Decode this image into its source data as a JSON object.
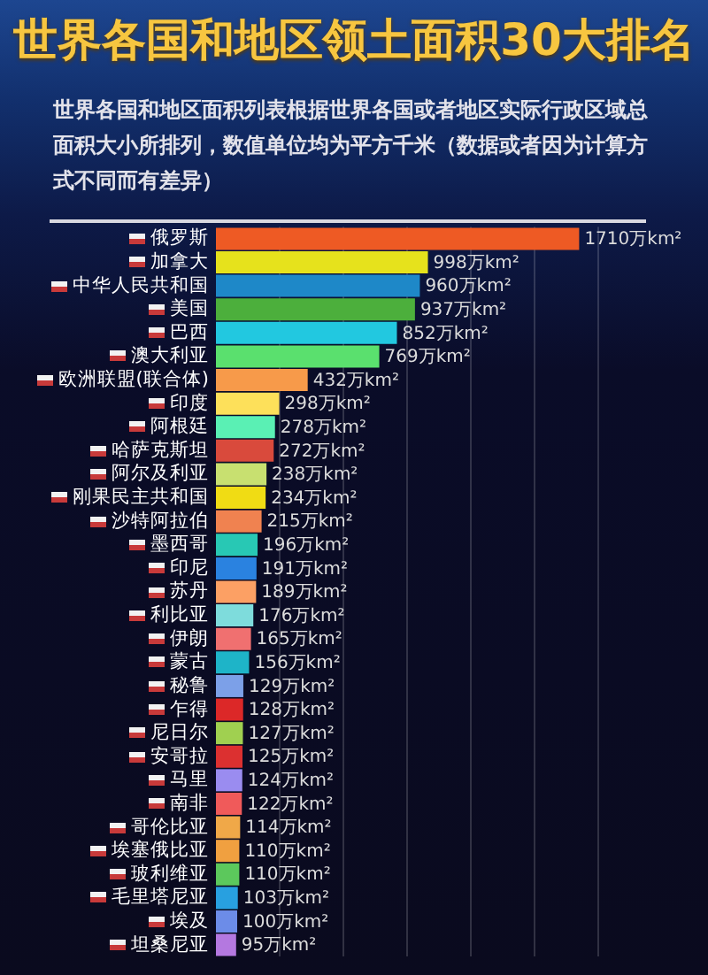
{
  "chart_data": {
    "type": "bar",
    "orientation": "horizontal",
    "title": "世界各国和地区领土面积30大排名",
    "subtitle": "世界各国和地区面积列表根据世界各国或者地区实际行政区域总面积大小所排列，数值单位均为平方千米（数据或者因为计算方式不同而有差异）",
    "categories": [
      "俄罗斯",
      "加拿大",
      "中华人民共和国",
      "美国",
      "巴西",
      "澳大利亚",
      "欧洲联盟(联合体)",
      "印度",
      "阿根廷",
      "哈萨克斯坦",
      "阿尔及利亚",
      "刚果民主共和国",
      "沙特阿拉伯",
      "墨西哥",
      "印尼",
      "苏丹",
      "利比亚",
      "伊朗",
      "蒙古",
      "秘鲁",
      "乍得",
      "尼日尔",
      "安哥拉",
      "马里",
      "南非",
      "哥伦比亚",
      "埃塞俄比亚",
      "玻利维亚",
      "毛里塔尼亚",
      "埃及",
      "坦桑尼亚"
    ],
    "values": [
      1710,
      998,
      960,
      937,
      852,
      769,
      432,
      298,
      278,
      272,
      238,
      234,
      215,
      196,
      191,
      189,
      176,
      165,
      156,
      129,
      128,
      127,
      125,
      124,
      122,
      114,
      110,
      110,
      103,
      100,
      95
    ],
    "value_labels": [
      "1710万km²",
      "998万km²",
      "960万km²",
      "937万km²",
      "852万km²",
      "769万km²",
      "432万km²",
      "298万km²",
      "278万km²",
      "272万km²",
      "238万km²",
      "234万km²",
      "215万km²",
      "196万km²",
      "191万km²",
      "189万km²",
      "176万km²",
      "165万km²",
      "156万km²",
      "129万km²",
      "128万km²",
      "127万km²",
      "125万km²",
      "124万km²",
      "122万km²",
      "114万km²",
      "110万km²",
      "110万km²",
      "103万km²",
      "100万km²",
      "95万km²"
    ],
    "colors": [
      "#ee5a24",
      "#e6e21c",
      "#1e88c8",
      "#4caf3c",
      "#22c8e0",
      "#5ae06e",
      "#f79a4a",
      "#fde05a",
      "#5af0b4",
      "#d94a3c",
      "#c8e070",
      "#f0dc14",
      "#f08250",
      "#28c8b4",
      "#2a82e0",
      "#fca064",
      "#7edcdc",
      "#f07070",
      "#1eb4c8",
      "#7ca0e8",
      "#dc2828",
      "#a0d050",
      "#dc3030",
      "#9a8cf0",
      "#f05a5a",
      "#f0a848",
      "#f0a040",
      "#5cc85c",
      "#28a0e0",
      "#6c8ce8",
      "#b478e0"
    ],
    "xlim": [
      0,
      2000
    ],
    "xticks": [
      {
        "value": 300,
        "label": null
      },
      {
        "value": 600,
        "label": null
      },
      {
        "value": 900,
        "label": null
      },
      {
        "value": 1200,
        "label": null
      },
      {
        "value": 1500,
        "label": null
      },
      {
        "value": 1800,
        "label": null
      }
    ],
    "grid": "x",
    "tick_labels": "y"
  }
}
